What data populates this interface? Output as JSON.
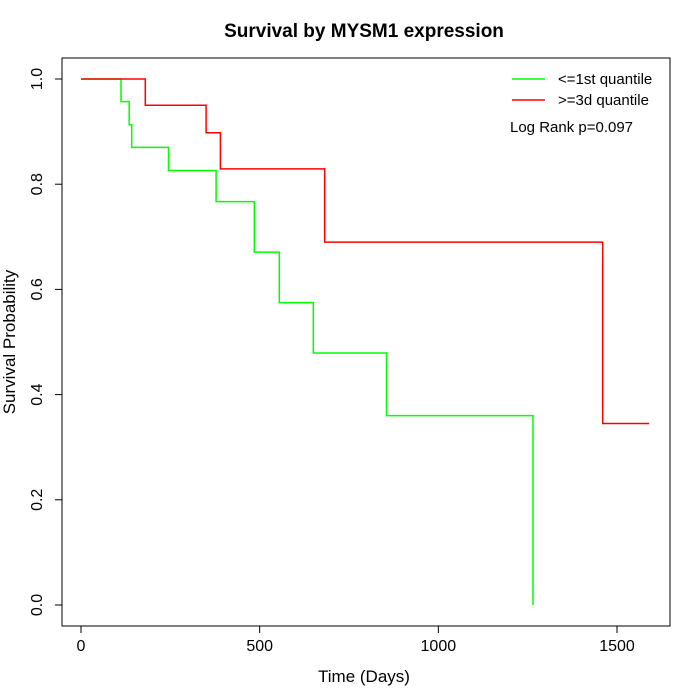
{
  "chart_data": {
    "type": "line",
    "step": true,
    "title": "Survival by MYSM1 expression",
    "xlabel": "Time (Days)",
    "ylabel": "Survival Probability",
    "xlim": [
      0,
      1600
    ],
    "ylim": [
      0,
      1.0
    ],
    "x_ticks": [
      0,
      500,
      1000,
      1500
    ],
    "y_ticks": [
      0.0,
      0.2,
      0.4,
      0.6,
      0.8,
      1.0
    ],
    "x_tick_labels": [
      "0",
      "500",
      "1000",
      "1500"
    ],
    "y_tick_labels": [
      "0.0",
      "0.2",
      "0.4",
      "0.6",
      "0.8",
      "1.0"
    ],
    "grid": false,
    "legend_position": "top-right",
    "annotation": "Log Rank p=0.097",
    "series": [
      {
        "name": "<=1st quantile",
        "color": "#00ff00",
        "points": [
          [
            0,
            1.0
          ],
          [
            112,
            1.0
          ],
          [
            112,
            0.957
          ],
          [
            135,
            0.957
          ],
          [
            135,
            0.913
          ],
          [
            142,
            0.913
          ],
          [
            142,
            0.87
          ],
          [
            245,
            0.87
          ],
          [
            245,
            0.826
          ],
          [
            378,
            0.826
          ],
          [
            378,
            0.767
          ],
          [
            485,
            0.767
          ],
          [
            485,
            0.671
          ],
          [
            555,
            0.671
          ],
          [
            555,
            0.575
          ],
          [
            650,
            0.575
          ],
          [
            650,
            0.479
          ],
          [
            855,
            0.479
          ],
          [
            855,
            0.36
          ],
          [
            1265,
            0.36
          ],
          [
            1265,
            0.0
          ]
        ]
      },
      {
        "name": ">=3d quantile",
        "color": "#ff0000",
        "points": [
          [
            0,
            1.0
          ],
          [
            180,
            1.0
          ],
          [
            180,
            0.95
          ],
          [
            350,
            0.95
          ],
          [
            350,
            0.898
          ],
          [
            390,
            0.898
          ],
          [
            390,
            0.829
          ],
          [
            682,
            0.829
          ],
          [
            682,
            0.69
          ],
          [
            1460,
            0.69
          ],
          [
            1460,
            0.345
          ],
          [
            1590,
            0.345
          ]
        ]
      }
    ]
  }
}
